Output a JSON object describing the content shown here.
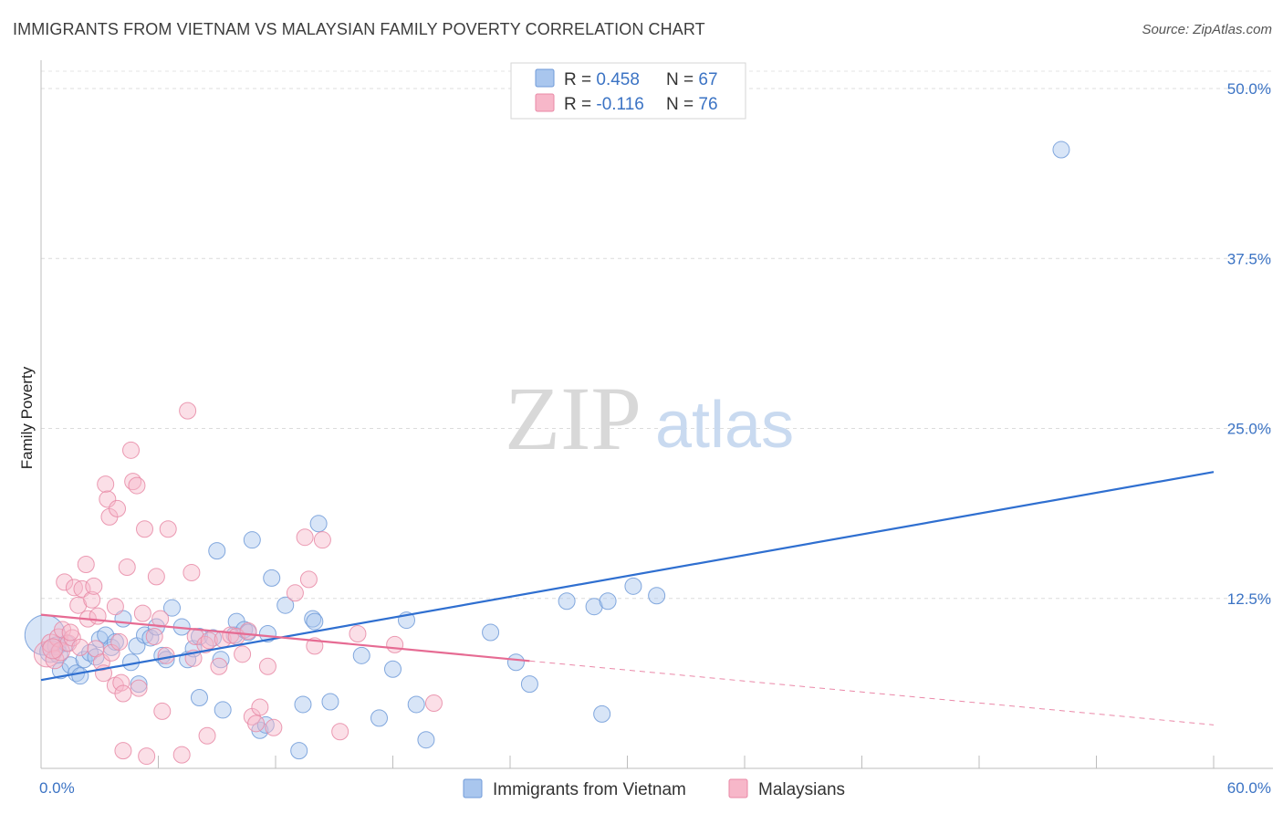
{
  "header": {
    "title": "IMMIGRANTS FROM VIETNAM VS MALAYSIAN FAMILY POVERTY CORRELATION CHART",
    "source": "Source: ZipAtlas.com"
  },
  "watermark": {
    "zip": "ZIP",
    "atlas": "atlas"
  },
  "legend": {
    "r_label": "R = ",
    "n_label": "N = ",
    "series": [
      {
        "name": "Immigrants from Vietnam",
        "r": "0.458",
        "n": "67",
        "color": "#a9c6ee",
        "stroke": "#6f9ad8"
      },
      {
        "name": "Malaysians",
        "r": "-0.116",
        "n": "76",
        "color": "#f7b7c9",
        "stroke": "#e889a6"
      }
    ]
  },
  "chart_data": {
    "type": "scatter",
    "title": "IMMIGRANTS FROM VIETNAM VS MALAYSIAN FAMILY POVERTY CORRELATION CHART",
    "xlabel": "",
    "ylabel": "Family Poverty",
    "xlim": [
      0,
      60
    ],
    "ylim": [
      0,
      50
    ],
    "x_tick_labels": [
      "0.0%",
      "60.0%"
    ],
    "y_ticks": [
      12.5,
      25.0,
      37.5,
      50.0
    ],
    "y_tick_labels": [
      "12.5%",
      "25.0%",
      "37.5%",
      "50.0%"
    ],
    "grid": true,
    "legend_position": "top-center",
    "series": [
      {
        "name": "Immigrants from Vietnam",
        "color": "#6f9ad8",
        "trend": {
          "x": [
            0,
            60
          ],
          "y": [
            6.5,
            21.8
          ],
          "color": "#2f6fd0"
        },
        "points": [
          [
            0.2,
            9.8,
            22
          ],
          [
            0.5,
            8.6,
            12
          ],
          [
            0.8,
            9.0,
            10
          ],
          [
            0.9,
            8.4,
            10
          ],
          [
            1.0,
            7.2,
            9
          ],
          [
            1.3,
            9.2,
            9
          ],
          [
            1.5,
            7.6,
            9
          ],
          [
            1.8,
            7.0,
            9
          ],
          [
            2.0,
            6.8,
            9
          ],
          [
            2.2,
            8.0,
            9
          ],
          [
            2.5,
            8.5,
            9
          ],
          [
            2.8,
            8.2,
            9
          ],
          [
            3.0,
            9.5,
            9
          ],
          [
            3.3,
            9.8,
            9
          ],
          [
            3.6,
            8.9,
            9
          ],
          [
            3.8,
            9.3,
            9
          ],
          [
            4.2,
            11.0,
            9
          ],
          [
            4.6,
            7.8,
            9
          ],
          [
            4.9,
            9.0,
            9
          ],
          [
            5.0,
            6.2,
            9
          ],
          [
            5.3,
            9.8,
            9
          ],
          [
            5.6,
            9.6,
            9
          ],
          [
            5.9,
            10.4,
            9
          ],
          [
            6.2,
            8.3,
            9
          ],
          [
            6.4,
            8.0,
            9
          ],
          [
            6.7,
            11.8,
            9
          ],
          [
            7.2,
            10.4,
            9
          ],
          [
            7.5,
            8.0,
            9
          ],
          [
            7.8,
            8.8,
            9
          ],
          [
            8.1,
            9.7,
            9
          ],
          [
            8.1,
            5.2,
            9
          ],
          [
            8.8,
            9.6,
            9
          ],
          [
            9.0,
            16.0,
            9
          ],
          [
            9.2,
            8.0,
            9
          ],
          [
            9.3,
            4.3,
            9
          ],
          [
            9.9,
            9.8,
            9
          ],
          [
            10.0,
            10.8,
            9
          ],
          [
            10.4,
            10.2,
            9
          ],
          [
            10.6,
            10.0,
            9
          ],
          [
            10.8,
            16.8,
            9
          ],
          [
            11.2,
            2.8,
            9
          ],
          [
            11.5,
            3.2,
            9
          ],
          [
            11.6,
            9.9,
            9
          ],
          [
            11.8,
            14.0,
            9
          ],
          [
            12.5,
            12.0,
            9
          ],
          [
            13.2,
            1.3,
            9
          ],
          [
            13.4,
            4.7,
            9
          ],
          [
            13.9,
            11.0,
            9
          ],
          [
            14.0,
            10.8,
            9
          ],
          [
            14.2,
            18.0,
            9
          ],
          [
            14.8,
            4.9,
            9
          ],
          [
            16.4,
            8.3,
            9
          ],
          [
            17.3,
            3.7,
            9
          ],
          [
            18.0,
            7.3,
            9
          ],
          [
            18.7,
            10.9,
            9
          ],
          [
            19.2,
            4.7,
            9
          ],
          [
            19.7,
            2.1,
            9
          ],
          [
            23.0,
            10.0,
            9
          ],
          [
            24.3,
            7.8,
            9
          ],
          [
            25.0,
            6.2,
            9
          ],
          [
            26.9,
            12.3,
            9
          ],
          [
            28.3,
            11.9,
            9
          ],
          [
            28.7,
            4.0,
            9
          ],
          [
            29.0,
            12.3,
            9
          ],
          [
            30.3,
            13.4,
            9
          ],
          [
            31.5,
            12.7,
            9
          ],
          [
            52.2,
            45.5,
            9
          ]
        ]
      },
      {
        "name": "Malaysians",
        "color": "#e889a6",
        "trend": {
          "x": [
            0,
            25
          ],
          "y": [
            11.3,
            7.9
          ],
          "color": "#e66b93",
          "dashed": {
            "x": [
              25,
              60
            ],
            "y": [
              7.9,
              3.2
            ]
          }
        },
        "points": [
          [
            0.3,
            8.4,
            14
          ],
          [
            0.5,
            9.2,
            10
          ],
          [
            0.7,
            8.0,
            10
          ],
          [
            0.9,
            9.6,
            10
          ],
          [
            1.0,
            8.6,
            10
          ],
          [
            1.1,
            10.2,
            9
          ],
          [
            1.2,
            13.7,
            9
          ],
          [
            1.4,
            9.2,
            9
          ],
          [
            1.6,
            9.6,
            9
          ],
          [
            1.7,
            13.3,
            9
          ],
          [
            1.9,
            12.0,
            9
          ],
          [
            2.0,
            8.9,
            9
          ],
          [
            2.1,
            13.2,
            9
          ],
          [
            2.3,
            15.0,
            9
          ],
          [
            2.4,
            11.0,
            9
          ],
          [
            2.6,
            12.4,
            9
          ],
          [
            2.7,
            13.4,
            9
          ],
          [
            2.8,
            8.8,
            9
          ],
          [
            2.9,
            11.2,
            9
          ],
          [
            3.1,
            7.8,
            9
          ],
          [
            3.2,
            7.0,
            9
          ],
          [
            3.3,
            20.9,
            9
          ],
          [
            3.4,
            19.8,
            9
          ],
          [
            3.5,
            18.5,
            9
          ],
          [
            3.6,
            8.5,
            9
          ],
          [
            3.8,
            6.1,
            9
          ],
          [
            3.8,
            11.9,
            9
          ],
          [
            3.9,
            19.1,
            9
          ],
          [
            4.0,
            9.3,
            9
          ],
          [
            4.1,
            6.3,
            9
          ],
          [
            4.2,
            5.5,
            9
          ],
          [
            4.2,
            1.3,
            9
          ],
          [
            4.4,
            14.8,
            9
          ],
          [
            4.6,
            23.4,
            9
          ],
          [
            4.7,
            21.1,
            9
          ],
          [
            4.9,
            20.8,
            9
          ],
          [
            5.0,
            5.9,
            9
          ],
          [
            5.2,
            11.4,
            9
          ],
          [
            5.3,
            17.6,
            9
          ],
          [
            5.4,
            0.9,
            9
          ],
          [
            5.8,
            9.7,
            9
          ],
          [
            5.9,
            14.1,
            9
          ],
          [
            6.1,
            11.0,
            9
          ],
          [
            6.2,
            4.2,
            9
          ],
          [
            6.4,
            8.3,
            9
          ],
          [
            6.5,
            17.6,
            9
          ],
          [
            7.2,
            1.0,
            9
          ],
          [
            7.5,
            26.3,
            9
          ],
          [
            7.7,
            14.4,
            9
          ],
          [
            7.8,
            8.1,
            9
          ],
          [
            7.9,
            9.7,
            9
          ],
          [
            8.4,
            9.1,
            9
          ],
          [
            8.5,
            2.4,
            9
          ],
          [
            8.6,
            9.4,
            9
          ],
          [
            9.1,
            7.5,
            9
          ],
          [
            9.3,
            9.5,
            9
          ],
          [
            9.7,
            9.8,
            9
          ],
          [
            10.0,
            9.7,
            9
          ],
          [
            10.3,
            8.4,
            9
          ],
          [
            10.6,
            10.1,
            9
          ],
          [
            10.8,
            3.8,
            9
          ],
          [
            11.0,
            3.3,
            9
          ],
          [
            11.2,
            4.5,
            9
          ],
          [
            11.6,
            7.5,
            9
          ],
          [
            11.9,
            3.0,
            9
          ],
          [
            13.0,
            12.9,
            9
          ],
          [
            13.5,
            17.0,
            9
          ],
          [
            13.7,
            13.9,
            9
          ],
          [
            14.0,
            9.0,
            9
          ],
          [
            14.4,
            16.8,
            9
          ],
          [
            15.3,
            2.7,
            9
          ],
          [
            16.2,
            9.9,
            9
          ],
          [
            18.1,
            9.1,
            9
          ],
          [
            20.1,
            4.8,
            9
          ],
          [
            0.6,
            8.8,
            11
          ],
          [
            1.5,
            10.0,
            9
          ]
        ]
      }
    ]
  },
  "bottom_legend": [
    "Immigrants from Vietnam",
    "Malaysians"
  ]
}
